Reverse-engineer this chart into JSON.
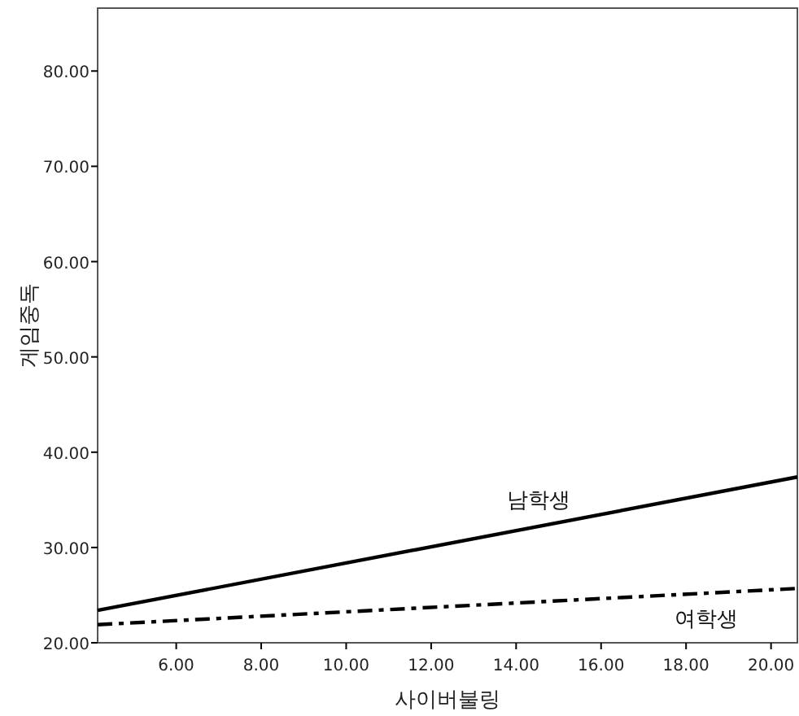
{
  "chart_data": {
    "type": "line",
    "xlabel": "사이버불링",
    "ylabel": "게임중독",
    "xlim": [
      4.15,
      20.62
    ],
    "ylim": [
      20,
      86.6
    ],
    "xticks": [
      {
        "value": 6,
        "label": "6.00"
      },
      {
        "value": 8,
        "label": "8.00"
      },
      {
        "value": 10,
        "label": "10.00"
      },
      {
        "value": 12,
        "label": "12.00"
      },
      {
        "value": 14,
        "label": "14.00"
      },
      {
        "value": 16,
        "label": "16.00"
      },
      {
        "value": 18,
        "label": "18.00"
      },
      {
        "value": 20,
        "label": "20.00"
      }
    ],
    "yticks": [
      {
        "value": 20,
        "label": "20.00"
      },
      {
        "value": 30,
        "label": "30.00"
      },
      {
        "value": 40,
        "label": "40.00"
      },
      {
        "value": 50,
        "label": "50.00"
      },
      {
        "value": 60,
        "label": "60.00"
      },
      {
        "value": 70,
        "label": "70.00"
      },
      {
        "value": 80,
        "label": "80.00"
      }
    ],
    "grid": false,
    "x": [
      4.15,
      20.62
    ],
    "series": [
      {
        "name": "남학생",
        "color": "#000000",
        "line_style": "solid",
        "values": [
          23.4,
          37.4
        ]
      },
      {
        "name": "여학생",
        "color": "#000000",
        "line_style": "dashdot",
        "values": [
          21.9,
          25.7
        ]
      }
    ]
  }
}
